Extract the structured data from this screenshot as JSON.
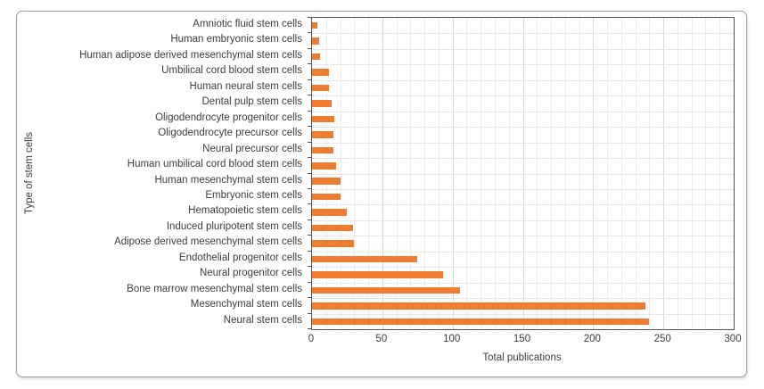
{
  "chart_data": {
    "type": "bar",
    "orientation": "horizontal",
    "title": "",
    "xlabel": "Total publications",
    "ylabel": "Type of stem cells",
    "xlim": [
      0,
      300
    ],
    "x_ticks": [
      0,
      50,
      100,
      150,
      200,
      250,
      300
    ],
    "x_minor_step": 10,
    "x_major_step": 50,
    "grid": true,
    "legend": "none",
    "bar_color": "#ED7D31",
    "plot_border_color": "#555555",
    "categories": [
      "Amniotic fluid stem cells",
      "Human embryonic stem cells",
      "Human adipose derived mesenchymal stem cells",
      "Umbilical cord blood stem cells",
      "Human neural stem cells",
      "Dental pulp stem cells",
      "Oligodendrocyte progenitor cells",
      "Oligodendrocyte precursor cells",
      "Neural precursor cells",
      "Human umbilical cord blood stem cells",
      "Human mesenchymal stem cells",
      "Embryonic stem cells",
      "Hematopoietic stem cells",
      "Induced pluripotent stem cells",
      "Adipose derived mesenchymal stem cells",
      "Endothelial progenitor cells",
      "Neural progenitor cells",
      "Bone marrow mesenchymal stem cells",
      "Mesenchymal stem cells",
      "Neural stem cells"
    ],
    "values": [
      4,
      5,
      6,
      12,
      12,
      14,
      16,
      15,
      15,
      17,
      20,
      20,
      25,
      29,
      30,
      75,
      93,
      105,
      237,
      240
    ]
  }
}
